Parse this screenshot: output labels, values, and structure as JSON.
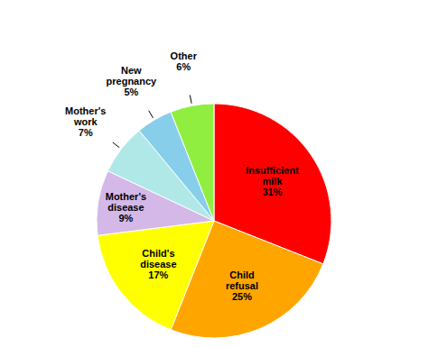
{
  "chart_data": {
    "type": "pie",
    "categories": [
      "Insufficient\nmilk\n31%",
      "Child\nrefusal\n25%",
      "Child's\ndisease\n17%",
      "Mother's\ndisease\n9%",
      "Mother's\nwork\n7%",
      "New\npregnancy\n5%",
      "Other\n6%"
    ],
    "values": [
      31,
      25,
      17,
      9,
      7,
      5,
      6
    ],
    "colors": [
      "#ff0000",
      "#ffa500",
      "#ffff00",
      "#d4b8e8",
      "#b0e8e8",
      "#87ceeb",
      "#90ee40"
    ]
  }
}
